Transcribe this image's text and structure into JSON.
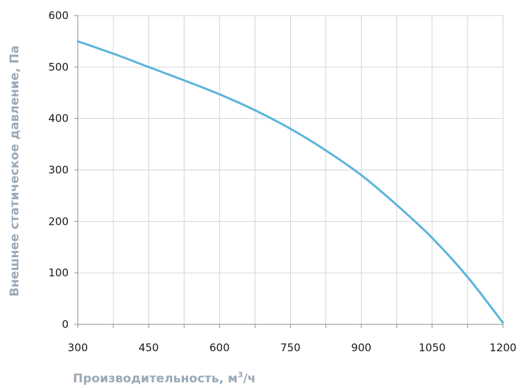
{
  "chart_data": {
    "type": "line",
    "title": "",
    "xlabel": "Производительность, м",
    "xlabel_sup": "3",
    "xlabel_suffix": "/ч",
    "ylabel": "Внешнее статическое давление, Па",
    "xlim": [
      300,
      1200
    ],
    "ylim": [
      0,
      600
    ],
    "xticks": [
      300,
      450,
      600,
      750,
      900,
      1050,
      1200
    ],
    "yticks": [
      0,
      100,
      200,
      300,
      400,
      500,
      600
    ],
    "grid": true,
    "legend": "none",
    "series": [
      {
        "color": "#5bb4dc",
        "x": [
          300,
          375,
          450,
          525,
          600,
          675,
          750,
          825,
          900,
          975,
          1050,
          1125,
          1200
        ],
        "y": [
          550,
          526,
          500,
          474,
          447,
          416,
          380,
          338,
          290,
          232,
          168,
          92,
          3
        ]
      }
    ]
  }
}
